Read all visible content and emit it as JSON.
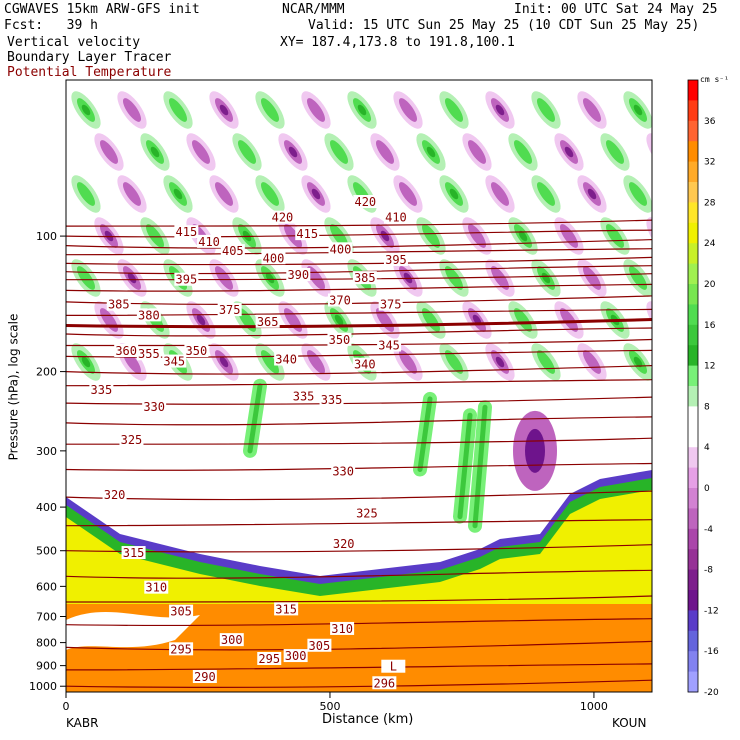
{
  "header": {
    "model": "CGWAVES 15km ARW-GFS init",
    "center": "NCAR/MMM",
    "init": "Init: 00 UTC Sat 24 May 25",
    "fcst": "Fcst:   39 h",
    "valid": "Valid: 15 UTC Sun 25 May 25 (10 CDT Sun 25 May 25)",
    "xy": "XY= 187.4,173.8 to 191.8,100.1",
    "fields": [
      {
        "label": "Vertical velocity",
        "color": "#000000"
      },
      {
        "label": "Boundary Layer Tracer",
        "color": "#000000"
      },
      {
        "label": "Potential Temperature",
        "color": "#8b0000"
      }
    ]
  },
  "chart_data": {
    "type": "heatmap",
    "title": "",
    "xlabel": "Distance (km)",
    "ylabel": "Pressure (hPa), log scale",
    "x_ticks": [
      "0",
      "500",
      "1000"
    ],
    "x_end_labels": {
      "left": "KABR",
      "right": "KOUN"
    },
    "y_ticks": [
      "100",
      "200",
      "300",
      "400",
      "500",
      "600",
      "700",
      "800",
      "900",
      "1000"
    ],
    "colorbar": {
      "unit": "cm s⁻¹",
      "labels": [
        "36",
        "32",
        "28",
        "24",
        "20",
        "16",
        "12",
        "8",
        "4",
        "0",
        "-4",
        "-8",
        "-12",
        "-16",
        "-20"
      ],
      "colors": [
        "#ff0000",
        "#ff3c14",
        "#ff6432",
        "#ff8c00",
        "#ffaa28",
        "#ffc850",
        "#ffe628",
        "#f0f000",
        "#c8f028",
        "#a0f050",
        "#78e650",
        "#50dc50",
        "#3cc83c",
        "#28b428",
        "#78f078",
        "#b4f0b4",
        "#ffffff",
        "#ffffff",
        "#f0c8f0",
        "#e6a0e6",
        "#d282d2",
        "#be64be",
        "#aa46aa",
        "#963296",
        "#7d1e8c",
        "#6e148c",
        "#5a3cc8",
        "#6464dc",
        "#8282f0",
        "#a0a0ff"
      ]
    },
    "theta_labels": [
      {
        "v": "420",
        "x": 410,
        "p": 91
      },
      {
        "v": "415",
        "x": 228,
        "p": 98
      },
      {
        "v": "415",
        "x": 457,
        "p": 99
      },
      {
        "v": "410",
        "x": 271,
        "p": 103
      },
      {
        "v": "410",
        "x": 625,
        "p": 91
      },
      {
        "v": "405",
        "x": 316,
        "p": 108
      },
      {
        "v": "400",
        "x": 393,
        "p": 112
      },
      {
        "v": "400",
        "x": 520,
        "p": 107
      },
      {
        "v": "420",
        "x": 567,
        "p": 84
      },
      {
        "v": "395",
        "x": 228,
        "p": 125
      },
      {
        "v": "395",
        "x": 625,
        "p": 113
      },
      {
        "v": "390",
        "x": 440,
        "p": 122
      },
      {
        "v": "385",
        "x": 100,
        "p": 142
      },
      {
        "v": "385",
        "x": 566,
        "p": 124
      },
      {
        "v": "380",
        "x": 157,
        "p": 150
      },
      {
        "v": "375",
        "x": 310,
        "p": 146
      },
      {
        "v": "370",
        "x": 519,
        "p": 139
      },
      {
        "v": "375",
        "x": 615,
        "p": 142
      },
      {
        "v": "365",
        "x": 382,
        "p": 155
      },
      {
        "v": "360",
        "x": 114,
        "p": 180
      },
      {
        "v": "355",
        "x": 157,
        "p": 183
      },
      {
        "v": "350",
        "x": 247,
        "p": 180
      },
      {
        "v": "350",
        "x": 518,
        "p": 170
      },
      {
        "v": "345",
        "x": 205,
        "p": 190
      },
      {
        "v": "345",
        "x": 612,
        "p": 175
      },
      {
        "v": "340",
        "x": 417,
        "p": 188
      },
      {
        "v": "340",
        "x": 566,
        "p": 193
      },
      {
        "v": "335",
        "x": 67,
        "p": 220
      },
      {
        "v": "335",
        "x": 450,
        "p": 227
      },
      {
        "v": "335",
        "x": 503,
        "p": 231
      },
      {
        "v": "330",
        "x": 167,
        "p": 240
      },
      {
        "v": "330",
        "x": 525,
        "p": 333
      },
      {
        "v": "325",
        "x": 124,
        "p": 284
      },
      {
        "v": "325",
        "x": 570,
        "p": 413
      },
      {
        "v": "320",
        "x": 92,
        "p": 376
      },
      {
        "v": "320",
        "x": 526,
        "p": 483
      },
      {
        "v": "315",
        "x": 128,
        "p": 506
      },
      {
        "v": "315",
        "x": 417,
        "p": 675
      },
      {
        "v": "310",
        "x": 171,
        "p": 604
      },
      {
        "v": "310",
        "x": 523,
        "p": 746
      },
      {
        "v": "305",
        "x": 218,
        "p": 683
      },
      {
        "v": "305",
        "x": 480,
        "p": 813
      },
      {
        "v": "300",
        "x": 314,
        "p": 790
      },
      {
        "v": "300",
        "x": 435,
        "p": 857
      },
      {
        "v": "295",
        "x": 218,
        "p": 828
      },
      {
        "v": "295",
        "x": 385,
        "p": 870
      },
      {
        "v": "290",
        "x": 263,
        "p": 954
      },
      {
        "v": "296",
        "x": 603,
        "p": 985
      },
      {
        "v": "L",
        "x": 620,
        "p": 905
      }
    ]
  }
}
